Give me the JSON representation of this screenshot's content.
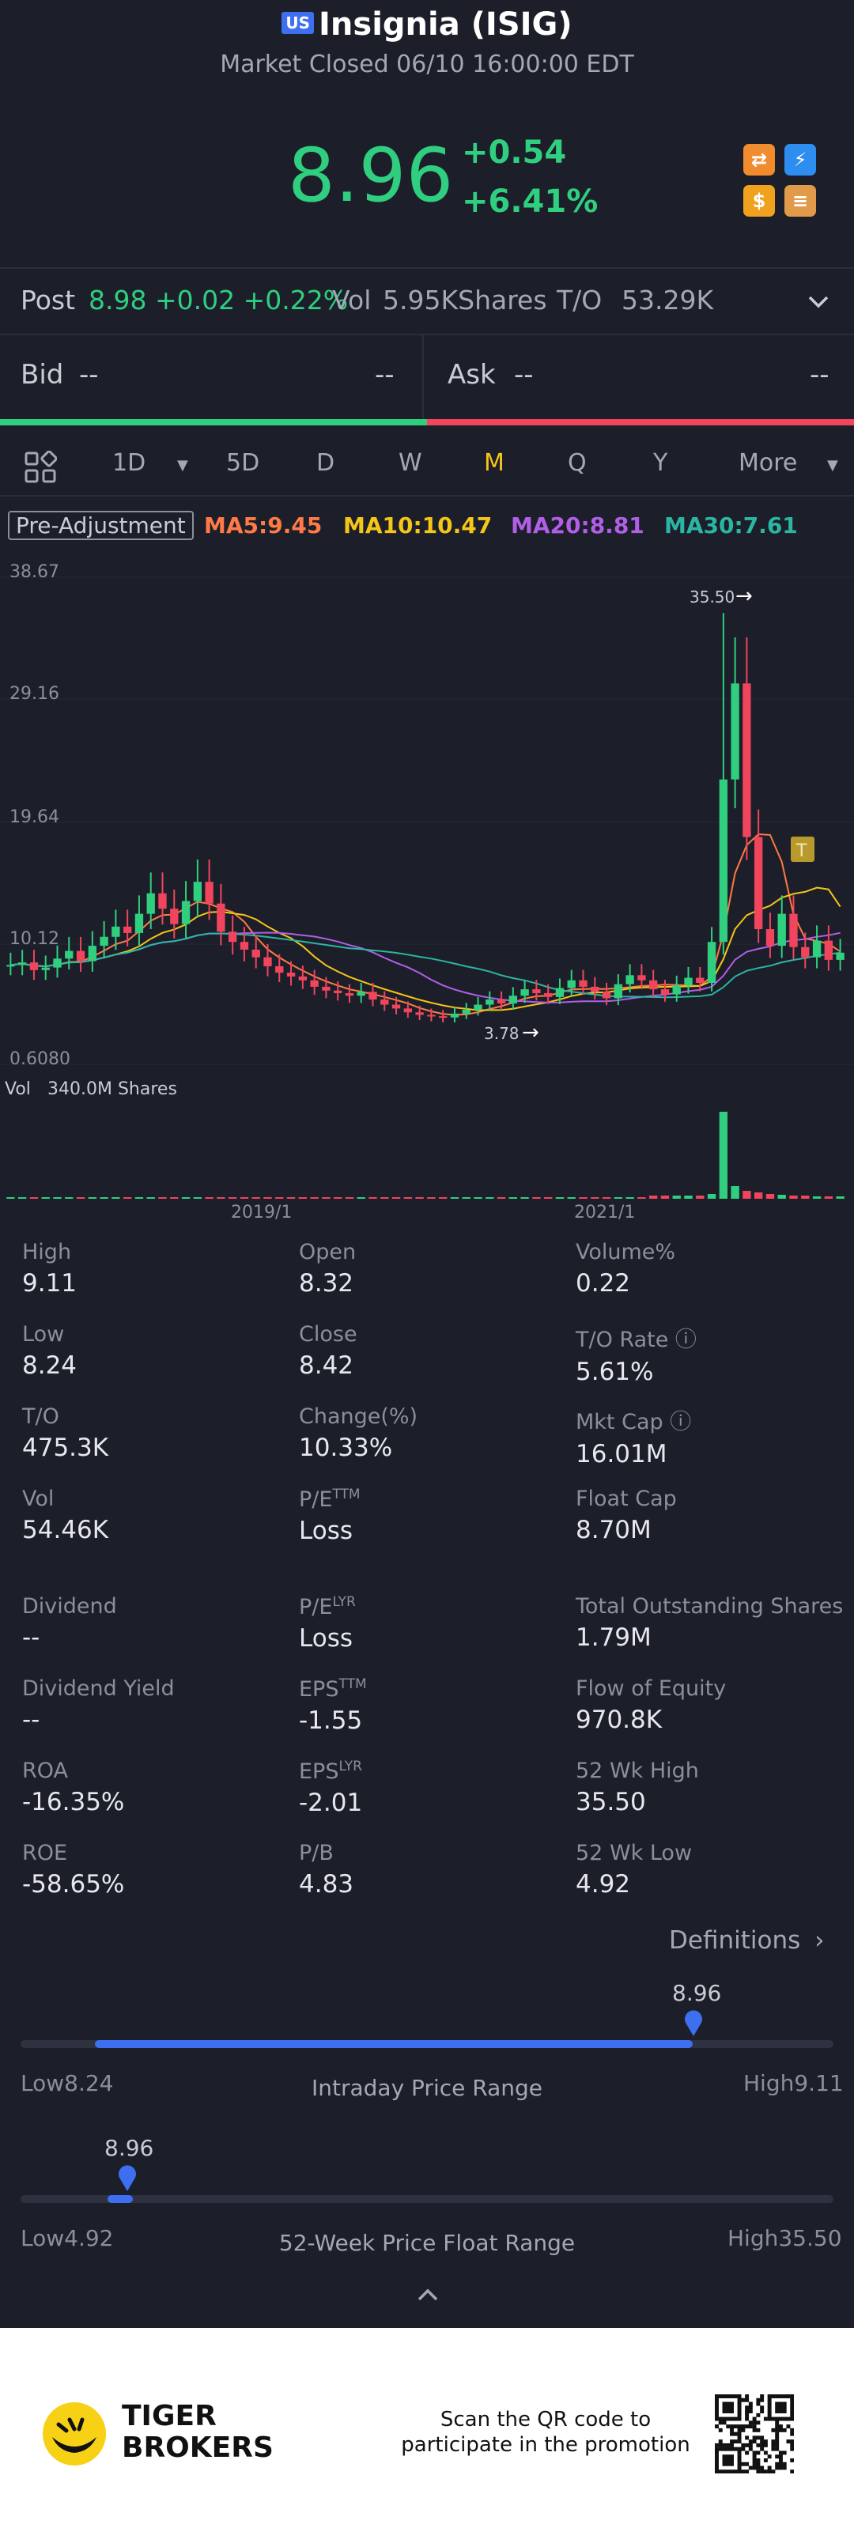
{
  "header": {
    "market_badge": "US",
    "title": "Insignia (ISIG)",
    "status": "Market Closed 06/10 16:00:00 EDT",
    "price": "8.96",
    "change_abs": "+0.54",
    "change_pct": "+6.41%"
  },
  "post": {
    "label": "Post",
    "values": "8.98 +0.02 +0.22%",
    "vol_label": "Vol",
    "vol_value": "5.95KShares",
    "to_label": "T/O",
    "to_value": "53.29K"
  },
  "quote": {
    "bid_label": "Bid",
    "bid_price": "--",
    "bid_size": "--",
    "ask_label": "Ask",
    "ask_price": "--",
    "ask_size": "--"
  },
  "periods": {
    "items": [
      "1D",
      "5D",
      "D",
      "W",
      "M",
      "Q",
      "Y"
    ],
    "more": "More",
    "active": "M"
  },
  "ma": {
    "pre_adjustment": "Pre-Adjustment",
    "ma5": "MA5:9.45",
    "ma10": "MA10:10.47",
    "ma20": "MA20:8.81",
    "ma30": "MA30:7.61"
  },
  "chart_data": {
    "type": "candlestick",
    "y_ticks": [
      "38.67",
      "29.16",
      "19.64",
      "10.12",
      "0.6080"
    ],
    "ylim": [
      0.608,
      38.67
    ],
    "max_marker": "35.50",
    "min_marker": "3.78",
    "marker_t": "T",
    "volume_label": "Vol",
    "volume_value": "340.0M Shares",
    "x_ticks": [
      "2019/1",
      "2021/1"
    ],
    "colors": {
      "up": "#2fcf7f",
      "down": "#f0455d",
      "ma5": "#ff7a45",
      "ma10": "#f5c518",
      "ma20": "#b15ee8",
      "ma30": "#2bb6a3"
    }
  },
  "stats": [
    {
      "label": "High",
      "value": "9.11"
    },
    {
      "label": "Open",
      "value": "8.32"
    },
    {
      "label": "Volume%",
      "value": "0.22"
    },
    {
      "label": "Low",
      "value": "8.24"
    },
    {
      "label": "Close",
      "value": "8.42"
    },
    {
      "label": "T/O Rate",
      "value": "5.61%"
    },
    {
      "label": "T/O",
      "value": "475.3K"
    },
    {
      "label": "Change(%)",
      "value": "10.33%"
    },
    {
      "label": "Mkt Cap",
      "value": "16.01M"
    },
    {
      "label": "Vol",
      "value": "54.46K"
    },
    {
      "label": "P/E",
      "sup": "TTM",
      "value": "Loss"
    },
    {
      "label": "Float Cap",
      "value": "8.70M"
    },
    {
      "label": "Dividend",
      "value": "--"
    },
    {
      "label": "P/E",
      "sup": "LYR",
      "value": "Loss"
    },
    {
      "label": "Total Outstanding Shares",
      "value": "1.79M"
    },
    {
      "label": "Dividend Yield",
      "value": "--"
    },
    {
      "label": "EPS",
      "sup": "TTM",
      "value": "-1.55"
    },
    {
      "label": "Flow of Equity",
      "value": "970.8K"
    },
    {
      "label": "ROA",
      "value": "-16.35%"
    },
    {
      "label": "EPS",
      "sup": "LYR",
      "value": "-2.01"
    },
    {
      "label": "52 Wk High",
      "value": "35.50"
    },
    {
      "label": "ROE",
      "value": "-58.65%"
    },
    {
      "label": "P/B",
      "value": "4.83"
    },
    {
      "label": "52 Wk Low",
      "value": "4.92"
    }
  ],
  "definitions": "Definitions",
  "intraday": {
    "current": "8.96",
    "low_label": "Low",
    "low": "8.24",
    "high_label": "High",
    "high": "9.11",
    "caption": "Intraday Price Range",
    "position_pct": 83
  },
  "week52": {
    "current": "8.96",
    "low_label": "Low",
    "low": "4.92",
    "high_label": "High",
    "high": "35.50",
    "caption": "52-Week Price Float Range",
    "position_pct": 13
  },
  "footer": {
    "brand_line1": "TIGER",
    "brand_line2": "BROKERS",
    "promo_line1": "Scan the QR code to",
    "promo_line2": "participate in the promotion"
  }
}
